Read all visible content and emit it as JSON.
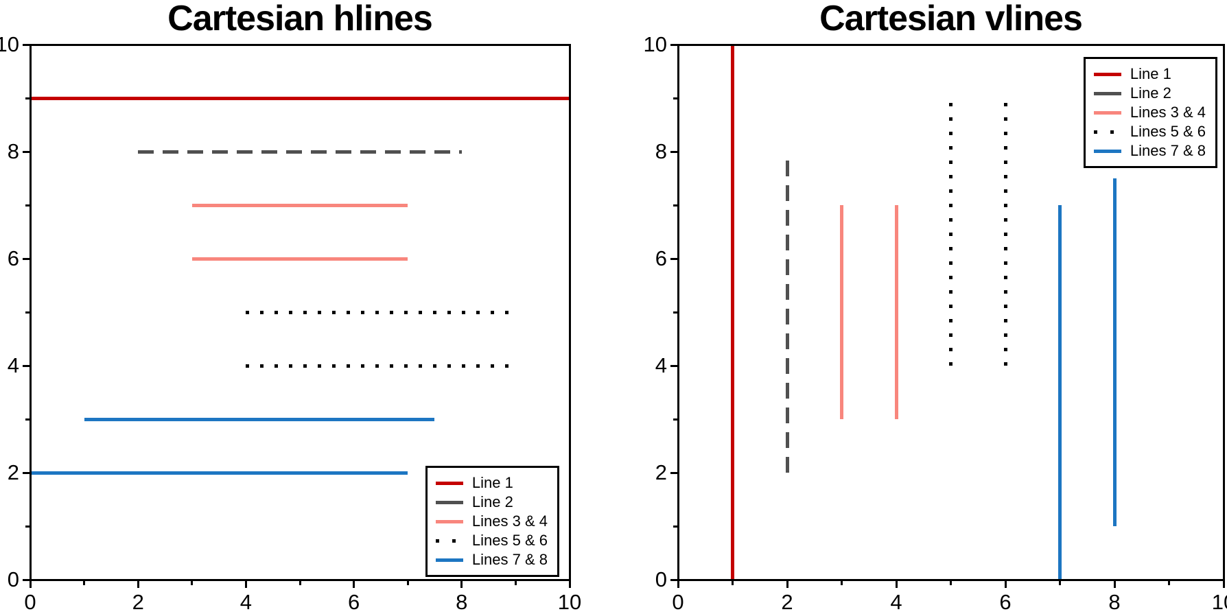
{
  "chart_data": [
    {
      "type": "hlines",
      "title": "Cartesian hlines",
      "xlim": [
        0,
        10
      ],
      "ylim": [
        0,
        10
      ],
      "xticks": [
        0,
        2,
        4,
        6,
        8,
        10
      ],
      "yticks": [
        0,
        2,
        4,
        6,
        8,
        10
      ],
      "xtick_labels": [
        "0",
        "2",
        "4",
        "6",
        "8",
        "10"
      ],
      "ytick_labels": [
        "0",
        "2",
        "4",
        "6",
        "8",
        "10"
      ],
      "minor_xticks": [
        1,
        3,
        5,
        7,
        9
      ],
      "minor_yticks": [
        1,
        3,
        5,
        7,
        9
      ],
      "grid": false,
      "legend_position": "lower-right",
      "series": [
        {
          "name": "Line 1",
          "color": "#C40000",
          "linestyle": "solid",
          "linewidth": 5,
          "segments": [
            {
              "y": 9,
              "xmin": 0,
              "xmax": 10
            }
          ]
        },
        {
          "name": "Line 2",
          "color": "#505050",
          "linestyle": "dashed",
          "linewidth": 5,
          "segments": [
            {
              "y": 8,
              "xmin": 2,
              "xmax": 8
            }
          ]
        },
        {
          "name": "Lines 3 & 4",
          "color": "#F8867D",
          "linestyle": "solid",
          "linewidth": 5,
          "segments": [
            {
              "y": 7,
              "xmin": 3,
              "xmax": 7
            },
            {
              "y": 6,
              "xmin": 3,
              "xmax": 7
            }
          ]
        },
        {
          "name": "Lines 5 & 6",
          "color": "#000000",
          "linestyle": "dotted",
          "linewidth": 5,
          "segments": [
            {
              "y": 5,
              "xmin": 4,
              "xmax": 9
            },
            {
              "y": 4,
              "xmin": 4,
              "xmax": 9
            }
          ]
        },
        {
          "name": "Lines 7 & 8",
          "color": "#1D76C2",
          "linestyle": "solid",
          "linewidth": 5,
          "segments": [
            {
              "y": 3,
              "xmin": 1,
              "xmax": 7.5
            },
            {
              "y": 2,
              "xmin": 0,
              "xmax": 7
            }
          ]
        }
      ]
    },
    {
      "type": "vlines",
      "title": "Cartesian vlines",
      "xlim": [
        0,
        10
      ],
      "ylim": [
        0,
        10
      ],
      "xticks": [
        0,
        2,
        4,
        6,
        8,
        10
      ],
      "yticks": [
        0,
        2,
        4,
        6,
        8,
        10
      ],
      "xtick_labels": [
        "0",
        "2",
        "4",
        "6",
        "8",
        "10"
      ],
      "ytick_labels": [
        "0",
        "2",
        "4",
        "6",
        "8",
        "10"
      ],
      "minor_xticks": [
        1,
        3,
        5,
        7,
        9
      ],
      "minor_yticks": [
        1,
        3,
        5,
        7,
        9
      ],
      "grid": false,
      "legend_position": "upper-right",
      "series": [
        {
          "name": "Line 1",
          "color": "#C40000",
          "linestyle": "solid",
          "linewidth": 5,
          "segments": [
            {
              "x": 1,
              "ymin": 0,
              "ymax": 10
            }
          ]
        },
        {
          "name": "Line 2",
          "color": "#505050",
          "linestyle": "dashed",
          "linewidth": 5,
          "segments": [
            {
              "x": 2,
              "ymin": 2,
              "ymax": 8
            }
          ]
        },
        {
          "name": "Lines 3 & 4",
          "color": "#F8867D",
          "linestyle": "solid",
          "linewidth": 5,
          "segments": [
            {
              "x": 3,
              "ymin": 3,
              "ymax": 7
            },
            {
              "x": 4,
              "ymin": 3,
              "ymax": 7
            }
          ]
        },
        {
          "name": "Lines 5 & 6",
          "color": "#000000",
          "linestyle": "dotted",
          "linewidth": 5,
          "segments": [
            {
              "x": 5,
              "ymin": 4,
              "ymax": 9
            },
            {
              "x": 6,
              "ymin": 4,
              "ymax": 9
            }
          ]
        },
        {
          "name": "Lines 7 & 8",
          "color": "#1D76C2",
          "linestyle": "solid",
          "linewidth": 5,
          "segments": [
            {
              "x": 7,
              "ymin": 0,
              "ymax": 7
            },
            {
              "x": 8,
              "ymin": 1,
              "ymax": 7.5
            }
          ]
        }
      ]
    }
  ]
}
